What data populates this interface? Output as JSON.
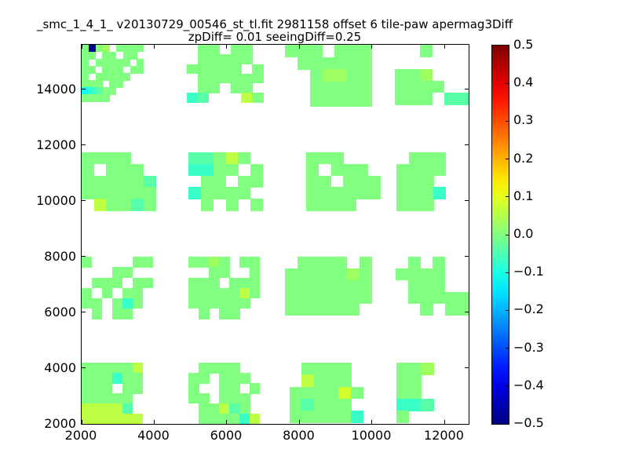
{
  "chart_data": {
    "type": "heatmap",
    "title": "_smc_1_4_1_ v20130729_00546_st_tl.fit 2981158 offset 6 tile-paw apermag3Diff",
    "subtitle": "zpDiff= 0.01 seeingDiff=0.25",
    "xlim": [
      2000,
      12660
    ],
    "ylim": [
      2000,
      15600
    ],
    "xticks": [
      2000,
      4000,
      6000,
      8000,
      10000,
      12000
    ],
    "yticks": [
      2000,
      4000,
      6000,
      8000,
      10000,
      12000,
      14000
    ],
    "grid": false,
    "colormap": "jet",
    "legend_position": "right-colorbar",
    "colorbar": {
      "min": -0.5,
      "max": 0.5,
      "ticks": [
        0.5,
        0.4,
        0.3,
        0.2,
        0.1,
        0.0,
        -0.1,
        -0.2,
        -0.3,
        -0.4,
        -0.5
      ]
    },
    "value_key": {
      "g": 0.0,
      "h": 0.03,
      "s": -0.04,
      "t": -0.07,
      "c": -0.11,
      "y": 0.06,
      "Y": 0.08,
      "N": -0.49
    },
    "clusters": [
      {
        "x0": 2000,
        "y0": 15600,
        "dx": 190,
        "dy": 255,
        "rows": [
          "gNgh.gggg.",
          "gg.gg.gg..",
          "g.ggggg.g.",
          "gg.ggg.gg.",
          "g.ggggg...",
          "ggg.gg....",
          "ctsgg.....",
          "gggg......"
        ]
      },
      {
        "x0": 4900,
        "y0": 15600,
        "dx": 300,
        "dy": 345,
        "rows": [
          ".gg.gg.",
          ".ggggg.",
          "ggggg.g",
          ".gggggg",
          ".gg.gg.",
          "ts...yg"
        ]
      },
      {
        "x0": 7610,
        "y0": 15600,
        "dx": 340,
        "dy": 440,
        "rows": [
          "ggg.ggg",
          ".gggggg",
          "..ghhgg",
          "..ggggg",
          "..ggggg"
        ]
      },
      {
        "x0": 10630,
        "y0": 15600,
        "dx": 340,
        "dy": 430,
        "rows": [
          "..g...",
          "......",
          "ggh...",
          "gggg..",
          "ggg.ss"
        ]
      },
      {
        "x0": 2000,
        "y0": 11750,
        "dx": 340,
        "dy": 420,
        "rows": [
          "gggg..",
          "g.ggg.",
          "gggggs",
          "gggggg",
          ".yggsg"
        ]
      },
      {
        "x0": 4950,
        "y0": 11750,
        "dx": 340,
        "dy": 420,
        "rows": [
          "ssgyg.",
          "ttgg.g",
          ".gg.gg",
          "tgggg.",
          ".g.g.g"
        ]
      },
      {
        "x0": 8190,
        "y0": 11750,
        "dx": 340,
        "dy": 420,
        "rows": [
          "ggg...",
          "g.ggg.",
          "gg.ggg",
          "gggggg",
          "gggg.."
        ]
      },
      {
        "x0": 10670,
        "y0": 11750,
        "dx": 340,
        "dy": 420,
        "rows": [
          ".ggg..",
          "gggg..",
          "ggg...",
          "gggt..",
          "ggg..."
        ]
      },
      {
        "x0": 2000,
        "y0": 7990,
        "dx": 280,
        "dy": 370,
        "rows": [
          "g....gg",
          "...gg..",
          ".ggg.gg",
          "g.g.gg.",
          "gg.gtg.",
          ".g.gg.."
        ]
      },
      {
        "x0": 4950,
        "y0": 7990,
        "dx": 280,
        "dy": 370,
        "rows": [
          "gghg.gg",
          "..gg..g",
          "ggg.ggg",
          "gggggyg",
          "gggggg.",
          ".g.gg.."
        ]
      },
      {
        "x0": 7610,
        "y0": 7990,
        "dx": 340,
        "dy": 420,
        "rows": [
          ".gggg.g",
          "ggggghg",
          "ggggggg",
          "ggggggg",
          "gggggg."
        ]
      },
      {
        "x0": 10650,
        "y0": 7990,
        "dx": 340,
        "dy": 420,
        "rows": [
          ".g.g..",
          "gggg..",
          ".ggg..",
          ".ggggg",
          "..g.gg"
        ]
      },
      {
        "x0": 2000,
        "y0": 4190,
        "dx": 280,
        "dy": 365,
        "rows": [
          "gggggy.",
          "gggtgg.",
          "ggg.gg.",
          "ggggg..",
          "yyyys..",
          "yyyyyy."
        ]
      },
      {
        "x0": 4950,
        "y0": 4190,
        "dx": 280,
        "dy": 365,
        "rows": [
          ".gggg..",
          "gg.ggg.",
          "g..gg.g",
          "gg.ggg.",
          ".ggysg.",
          ".ggggty"
        ]
      },
      {
        "x0": 7720,
        "y0": 4190,
        "dx": 340,
        "dy": 430,
        "rows": [
          ".gggg.",
          ".yggg.",
          "ggggYg",
          "gsggg.",
          "gggggt"
        ]
      },
      {
        "x0": 10670,
        "y0": 4190,
        "dx": 340,
        "dy": 430,
        "rows": [
          "ggh...",
          "gg....",
          "gg....",
          "tts...",
          "g....."
        ]
      }
    ]
  }
}
